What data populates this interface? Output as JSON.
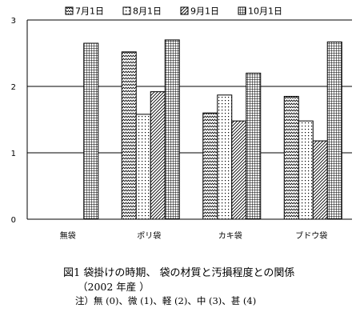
{
  "chart_data": {
    "type": "bar",
    "categories": [
      "無袋",
      "ポリ袋",
      "カキ袋",
      "ブドウ袋"
    ],
    "series": [
      {
        "name": "7月1日",
        "values": [
          null,
          2.52,
          1.6,
          1.85
        ],
        "pattern": "zigzag"
      },
      {
        "name": "8月1日",
        "values": [
          null,
          1.58,
          1.87,
          1.48
        ],
        "pattern": "dots"
      },
      {
        "name": "9月1日",
        "values": [
          null,
          1.92,
          1.48,
          1.18
        ],
        "pattern": "diagonal"
      },
      {
        "name": "10月1日",
        "values": [
          2.65,
          2.7,
          2.2,
          2.67
        ],
        "pattern": "grid"
      }
    ],
    "ylim": [
      0,
      3
    ],
    "yticks": [
      "0",
      "1",
      "2",
      "3"
    ],
    "grid": true,
    "legend_position": "top"
  },
  "caption": {
    "title": "図1 袋掛けの時期、 袋の材質と汚損程度との関係",
    "subtitle": "（2002 年産 ）",
    "note": "注）無 (0)、微 (1)、軽 (2)、中 (3)、甚 (4)"
  }
}
